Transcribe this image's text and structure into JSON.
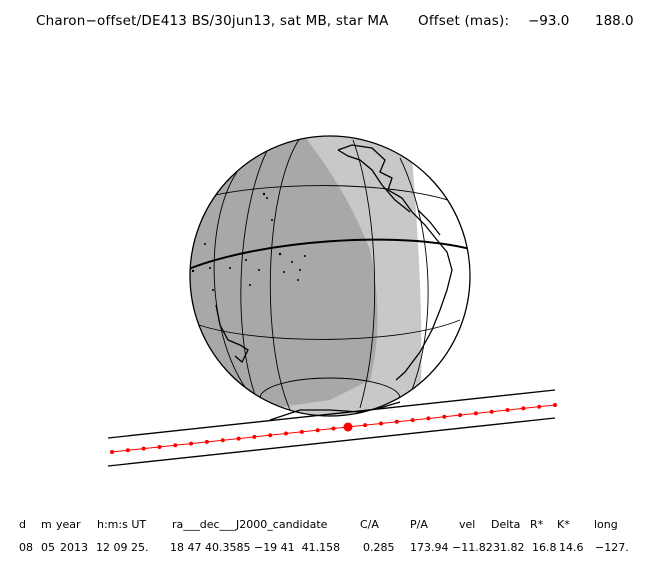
{
  "title": "Charon−offset/DE413 BS/30jun13, sat MB, star MA",
  "offset_label": "Offset (mas):",
  "offset_values": [
    "−93.0",
    "188.0"
  ],
  "colors": {
    "night": "#a8a8a8",
    "twilight": "#c8c8c8",
    "day": "#ffffff",
    "track": "#ff0000",
    "outline": "#000000"
  },
  "table": {
    "headers": [
      "d",
      "m",
      "year",
      "h:m:s UT",
      "ra___dec___J2000_candidate",
      "C/A",
      "P/A",
      "vel",
      "Delta",
      "R*",
      "K*",
      "long"
    ],
    "values": [
      "08",
      "05",
      "2013",
      "12 09 25.",
      "18 47 40.3585 −19 41  41.158",
      "0.285",
      "173.94",
      "−11.82",
      "31.82",
      "16.8",
      "14.6",
      "−127."
    ]
  }
}
